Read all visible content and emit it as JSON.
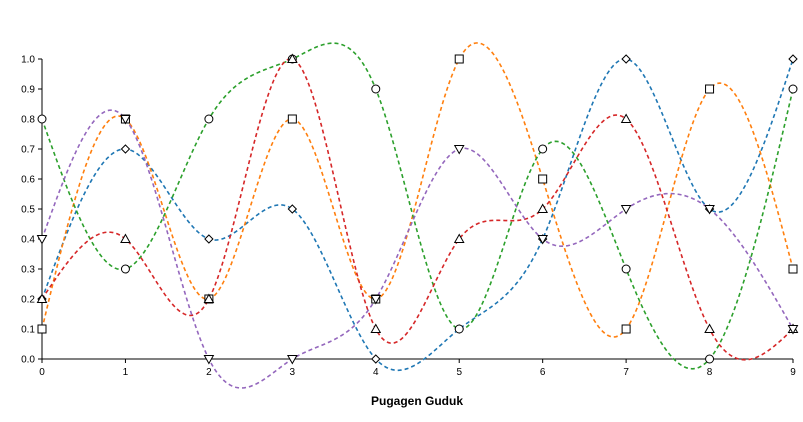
{
  "chart_data": {
    "type": "line",
    "title": "",
    "xlabel": "Pugagen Guduk",
    "ylabel": "",
    "x": [
      0,
      1,
      2,
      3,
      4,
      5,
      6,
      7,
      8,
      9
    ],
    "xlim": [
      0,
      9
    ],
    "ylim": [
      0,
      1.0
    ],
    "x_ticks": [
      0,
      1,
      2,
      3,
      4,
      5,
      6,
      7,
      8,
      9
    ],
    "y_ticks": [
      0.0,
      0.1,
      0.2,
      0.3,
      0.4,
      0.5,
      0.6,
      0.7,
      0.8,
      0.9,
      1.0
    ],
    "x_tick_labels": [
      "0",
      "1",
      "2",
      "3",
      "4",
      "5",
      "6",
      "7",
      "8",
      "9"
    ],
    "y_tick_labels": [
      "0.0",
      "0.1",
      "0.2",
      "0.3",
      "0.4",
      "0.5",
      "0.6",
      "0.7",
      "0.8",
      "0.9",
      "1.0"
    ],
    "grid": false,
    "legend": "none",
    "line_style": "dashed",
    "smooth": true,
    "series": [
      {
        "color": "#1f77b4",
        "marker": "diamond",
        "values": [
          0.2,
          0.7,
          0.4,
          0.5,
          0.0,
          0.1,
          0.4,
          1.0,
          0.5,
          1.0
        ]
      },
      {
        "color": "#ff7f0e",
        "marker": "square",
        "values": [
          0.1,
          0.8,
          0.2,
          0.8,
          0.2,
          1.0,
          0.6,
          0.1,
          0.9,
          0.3
        ]
      },
      {
        "color": "#2ca02c",
        "marker": "circle",
        "values": [
          0.8,
          0.3,
          0.8,
          1.0,
          0.9,
          0.1,
          0.7,
          0.3,
          0.0,
          0.9
        ]
      },
      {
        "color": "#d62728",
        "marker": "triangle-up",
        "values": [
          0.2,
          0.4,
          0.2,
          1.0,
          0.1,
          0.4,
          0.5,
          0.8,
          0.1,
          0.1
        ]
      },
      {
        "color": "#9467bd",
        "marker": "triangle-down",
        "values": [
          0.4,
          0.8,
          0.0,
          0.0,
          0.2,
          0.7,
          0.4,
          0.5,
          0.5,
          0.1
        ]
      }
    ]
  }
}
